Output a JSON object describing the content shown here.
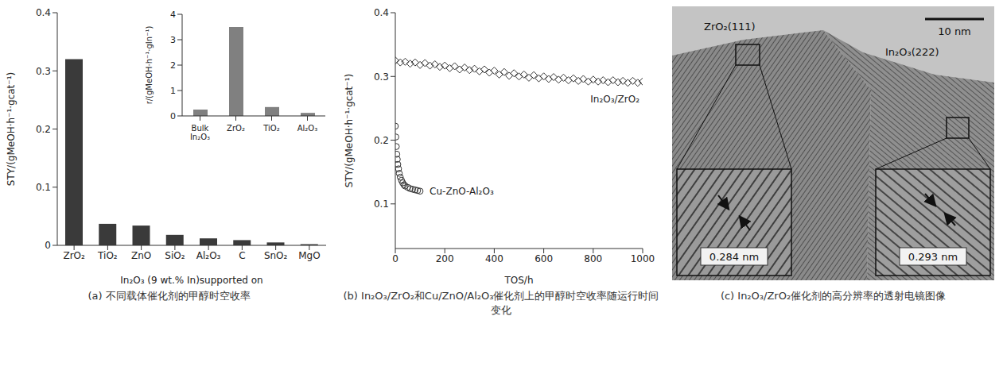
{
  "chart_data": [
    {
      "type": "bar",
      "caption": "(a) 不同载体催化剂的甲醇时空收率",
      "x_label": "In₂O₃ (9 wt.% In)supported on",
      "y_label": "STY/(gMeOH·h⁻¹·gcat⁻¹)",
      "categories": [
        "ZrO₂",
        "TiO₂",
        "ZnO",
        "SiO₂",
        "Al₂O₃",
        "C",
        "SnO₂",
        "MgO"
      ],
      "values": [
        0.32,
        0.037,
        0.034,
        0.018,
        0.012,
        0.009,
        0.005,
        0.002
      ],
      "color": "#3a3a3a",
      "ylim": [
        0,
        0.4
      ],
      "yticks": [
        0,
        0.1,
        0.2,
        0.3,
        0.4
      ],
      "grid": false
    },
    {
      "type": "bar",
      "y_label": "r/(gMeOH·h⁻¹·gIn⁻¹)",
      "categories": [
        "Bulk In₂O₃",
        "ZrO₂",
        "TiO₂",
        "Al₂O₃"
      ],
      "values": [
        0.25,
        3.5,
        0.35,
        0.12
      ],
      "color": "#808080",
      "ylim": [
        0,
        4
      ],
      "yticks": [
        0,
        1,
        2,
        3,
        4
      ],
      "grid": false
    },
    {
      "type": "scatter",
      "caption": "(b) In₂O₃/ZrO₂和Cu/ZnO/Al₂O₃催化剂上的甲醇时空收率随运行时间变化",
      "x_label": "TOS/h",
      "y_label": "STY/(gMeOH·h⁻¹·gcat⁻¹)",
      "xlim": [
        0,
        1000
      ],
      "xticks": [
        0,
        200,
        400,
        600,
        800,
        1000
      ],
      "ylim": [
        0.03,
        0.4
      ],
      "yticks": [
        0.1,
        0.2,
        0.3,
        0.4
      ],
      "grid": false,
      "series": [
        {
          "name": "In₂O₃/ZrO₂",
          "color": "#333333",
          "marker": "diamond",
          "x": [
            0,
            20,
            40,
            60,
            80,
            100,
            120,
            140,
            160,
            180,
            200,
            220,
            240,
            260,
            280,
            300,
            320,
            340,
            360,
            380,
            400,
            420,
            440,
            460,
            480,
            500,
            520,
            540,
            560,
            580,
            600,
            620,
            640,
            660,
            680,
            700,
            720,
            740,
            760,
            780,
            800,
            820,
            840,
            860,
            880,
            900,
            920,
            940,
            960,
            980,
            1000
          ],
          "values": [
            0.325,
            0.322,
            0.323,
            0.32,
            0.322,
            0.318,
            0.321,
            0.317,
            0.319,
            0.315,
            0.317,
            0.313,
            0.316,
            0.311,
            0.314,
            0.31,
            0.312,
            0.308,
            0.311,
            0.306,
            0.309,
            0.303,
            0.307,
            0.301,
            0.305,
            0.3,
            0.303,
            0.298,
            0.302,
            0.297,
            0.3,
            0.296,
            0.299,
            0.295,
            0.298,
            0.294,
            0.297,
            0.293,
            0.296,
            0.292,
            0.295,
            0.292,
            0.294,
            0.291,
            0.294,
            0.291,
            0.293,
            0.29,
            0.293,
            0.29,
            0.292
          ]
        },
        {
          "name": "Cu-ZnO-Al₂O₃",
          "color": "#333333",
          "marker": "circle",
          "x": [
            0,
            2,
            4,
            6,
            8,
            10,
            13,
            16,
            20,
            25,
            30,
            35,
            40,
            50,
            60,
            70,
            80,
            90,
            100
          ],
          "values": [
            0.222,
            0.205,
            0.19,
            0.178,
            0.17,
            0.162,
            0.155,
            0.148,
            0.142,
            0.137,
            0.133,
            0.13,
            0.128,
            0.126,
            0.124,
            0.123,
            0.122,
            0.121,
            0.12
          ]
        }
      ]
    }
  ],
  "image_panel": {
    "caption": "(c) In₂O₃/ZrO₂催化剂的高分辨率的透射电镜图像",
    "labels": [
      "ZrO₂(111)",
      "In₂O₃(222)"
    ],
    "scale_bar": "10 nm",
    "spacings": [
      "0.284 nm",
      "0.293 nm"
    ]
  }
}
